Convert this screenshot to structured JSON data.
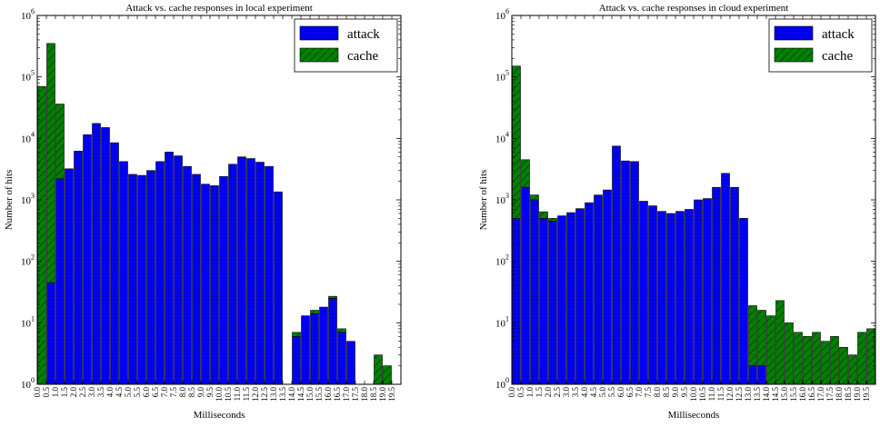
{
  "chart_data": [
    {
      "type": "bar",
      "stacked": true,
      "title": "Attack vs. cache responses in local experiment",
      "xlabel": "Milliseconds",
      "ylabel": "Number of hits",
      "yscale": "log",
      "ylim": [
        1,
        1000000
      ],
      "y_ticks": [
        {
          "base": "10",
          "exp": "0"
        },
        {
          "base": "10",
          "exp": "1"
        },
        {
          "base": "10",
          "exp": "2"
        },
        {
          "base": "10",
          "exp": "3"
        },
        {
          "base": "10",
          "exp": "4"
        },
        {
          "base": "10",
          "exp": "5"
        },
        {
          "base": "10",
          "exp": "6"
        }
      ],
      "categories": [
        "0.0",
        "0.5",
        "1.0",
        "1.5",
        "2.0",
        "2.5",
        "3.0",
        "3.5",
        "4.0",
        "4.5",
        "5.0",
        "5.5",
        "6.0",
        "6.5",
        "7.0",
        "7.5",
        "8.0",
        "8.5",
        "9.0",
        "9.5",
        "10.0",
        "10.5",
        "11.0",
        "11.5",
        "12.0",
        "12.5",
        "13.0",
        "13.5",
        "14.0",
        "14.5",
        "15.0",
        "15.5",
        "16.0",
        "16.5",
        "17.0",
        "17.5",
        "18.0",
        "18.5",
        "19.0",
        "19.5"
      ],
      "legend": {
        "placement": "top-right",
        "entries": [
          "attack",
          "cache"
        ]
      },
      "series": [
        {
          "name": "attack",
          "color": "#0000ff",
          "hatch": "dots",
          "values": [
            0,
            45,
            2200,
            3200,
            6200,
            11500,
            17500,
            15000,
            8500,
            4200,
            2600,
            2500,
            3000,
            4200,
            6000,
            5200,
            3500,
            2600,
            1800,
            1700,
            2400,
            3800,
            5000,
            4700,
            4100,
            3500,
            1350,
            0,
            6,
            13,
            14,
            18,
            25,
            7,
            5,
            0,
            0,
            0,
            0,
            0
          ]
        },
        {
          "name": "cache",
          "color": "#008000",
          "hatch": "diagonal",
          "values": [
            70000,
            350000,
            34000,
            0,
            0,
            0,
            0,
            0,
            0,
            0,
            0,
            0,
            0,
            0,
            0,
            0,
            0,
            0,
            0,
            0,
            0,
            0,
            0,
            0,
            0,
            0,
            0,
            0,
            1,
            0,
            2,
            0,
            2,
            1,
            0,
            0,
            0,
            3,
            2,
            0
          ]
        }
      ]
    },
    {
      "type": "bar",
      "stacked": true,
      "title": "Attack vs. cache responses in cloud experiment",
      "xlabel": "Milliseconds",
      "ylabel": "Number of hits",
      "yscale": "log",
      "ylim": [
        1,
        1000000
      ],
      "y_ticks": [
        {
          "base": "10",
          "exp": "0"
        },
        {
          "base": "10",
          "exp": "1"
        },
        {
          "base": "10",
          "exp": "2"
        },
        {
          "base": "10",
          "exp": "3"
        },
        {
          "base": "10",
          "exp": "4"
        },
        {
          "base": "10",
          "exp": "5"
        },
        {
          "base": "10",
          "exp": "6"
        }
      ],
      "categories": [
        "0.0",
        "0.5",
        "1.0",
        "1.5",
        "2.0",
        "2.5",
        "3.0",
        "3.5",
        "4.0",
        "4.5",
        "5.0",
        "5.5",
        "6.0",
        "6.5",
        "7.0",
        "7.5",
        "8.0",
        "8.5",
        "9.0",
        "9.5",
        "10.0",
        "10.5",
        "11.0",
        "11.5",
        "12.0",
        "12.5",
        "13.0",
        "13.5",
        "14.0",
        "14.5",
        "15.0",
        "15.5",
        "16.0",
        "16.5",
        "17.0",
        "17.5",
        "18.0",
        "18.5",
        "19.0",
        "19.5"
      ],
      "legend": {
        "placement": "top-right",
        "entries": [
          "attack",
          "cache"
        ]
      },
      "series": [
        {
          "name": "attack",
          "color": "#0000ff",
          "hatch": "dots",
          "values": [
            500,
            1600,
            1000,
            500,
            450,
            550,
            620,
            720,
            900,
            1200,
            1450,
            7500,
            4300,
            4200,
            950,
            800,
            650,
            600,
            650,
            700,
            1000,
            1050,
            1600,
            2700,
            1600,
            500,
            2,
            2,
            0,
            0,
            0,
            0,
            0,
            0,
            0,
            0,
            0,
            0,
            0,
            0
          ]
        },
        {
          "name": "cache",
          "color": "#008000",
          "hatch": "diagonal",
          "values": [
            149500,
            2900,
            200,
            140,
            50,
            0,
            0,
            0,
            0,
            0,
            0,
            0,
            0,
            0,
            0,
            0,
            0,
            0,
            0,
            0,
            0,
            0,
            0,
            0,
            0,
            0,
            17,
            14,
            13,
            23,
            10,
            7,
            6,
            7,
            5,
            6,
            4,
            3,
            7,
            8
          ]
        }
      ]
    }
  ]
}
